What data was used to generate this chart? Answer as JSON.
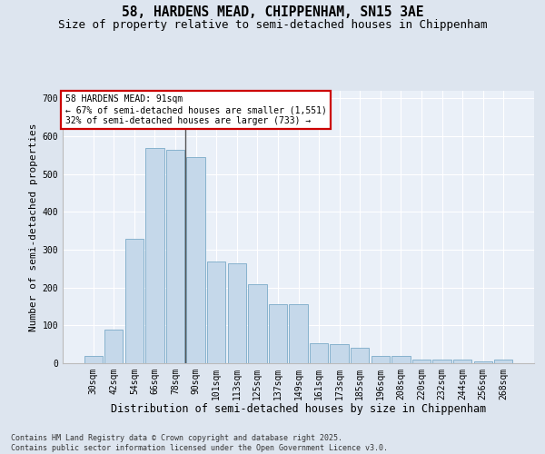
{
  "title1": "58, HARDENS MEAD, CHIPPENHAM, SN15 3AE",
  "title2": "Size of property relative to semi-detached houses in Chippenham",
  "xlabel": "Distribution of semi-detached houses by size in Chippenham",
  "ylabel": "Number of semi-detached properties",
  "categories": [
    "30sqm",
    "42sqm",
    "54sqm",
    "66sqm",
    "78sqm",
    "90sqm",
    "101sqm",
    "113sqm",
    "125sqm",
    "137sqm",
    "149sqm",
    "161sqm",
    "173sqm",
    "185sqm",
    "196sqm",
    "208sqm",
    "220sqm",
    "232sqm",
    "244sqm",
    "256sqm",
    "268sqm"
  ],
  "values": [
    20,
    88,
    330,
    570,
    565,
    545,
    270,
    265,
    210,
    155,
    155,
    53,
    50,
    42,
    20,
    20,
    10,
    10,
    10,
    5,
    10
  ],
  "bar_color": "#c5d8ea",
  "bar_edge_color": "#7aaac8",
  "vline_x_idx": 5,
  "vline_color": "#555555",
  "annotation_title": "58 HARDENS MEAD: 91sqm",
  "annotation_line1": "← 67% of semi-detached houses are smaller (1,551)",
  "annotation_line2": "32% of semi-detached houses are larger (733) →",
  "annotation_box_facecolor": "#ffffff",
  "annotation_box_edgecolor": "#cc0000",
  "ylim": [
    0,
    720
  ],
  "yticks": [
    0,
    100,
    200,
    300,
    400,
    500,
    600,
    700
  ],
  "footnote_line1": "Contains HM Land Registry data © Crown copyright and database right 2025.",
  "footnote_line2": "Contains public sector information licensed under the Open Government Licence v3.0.",
  "fig_bg_color": "#dde5ef",
  "plot_bg_color": "#eaf0f8",
  "title1_fontsize": 10.5,
  "title2_fontsize": 9,
  "xlabel_fontsize": 8.5,
  "ylabel_fontsize": 8,
  "tick_fontsize": 7,
  "footnote_fontsize": 6,
  "annot_fontsize": 7
}
